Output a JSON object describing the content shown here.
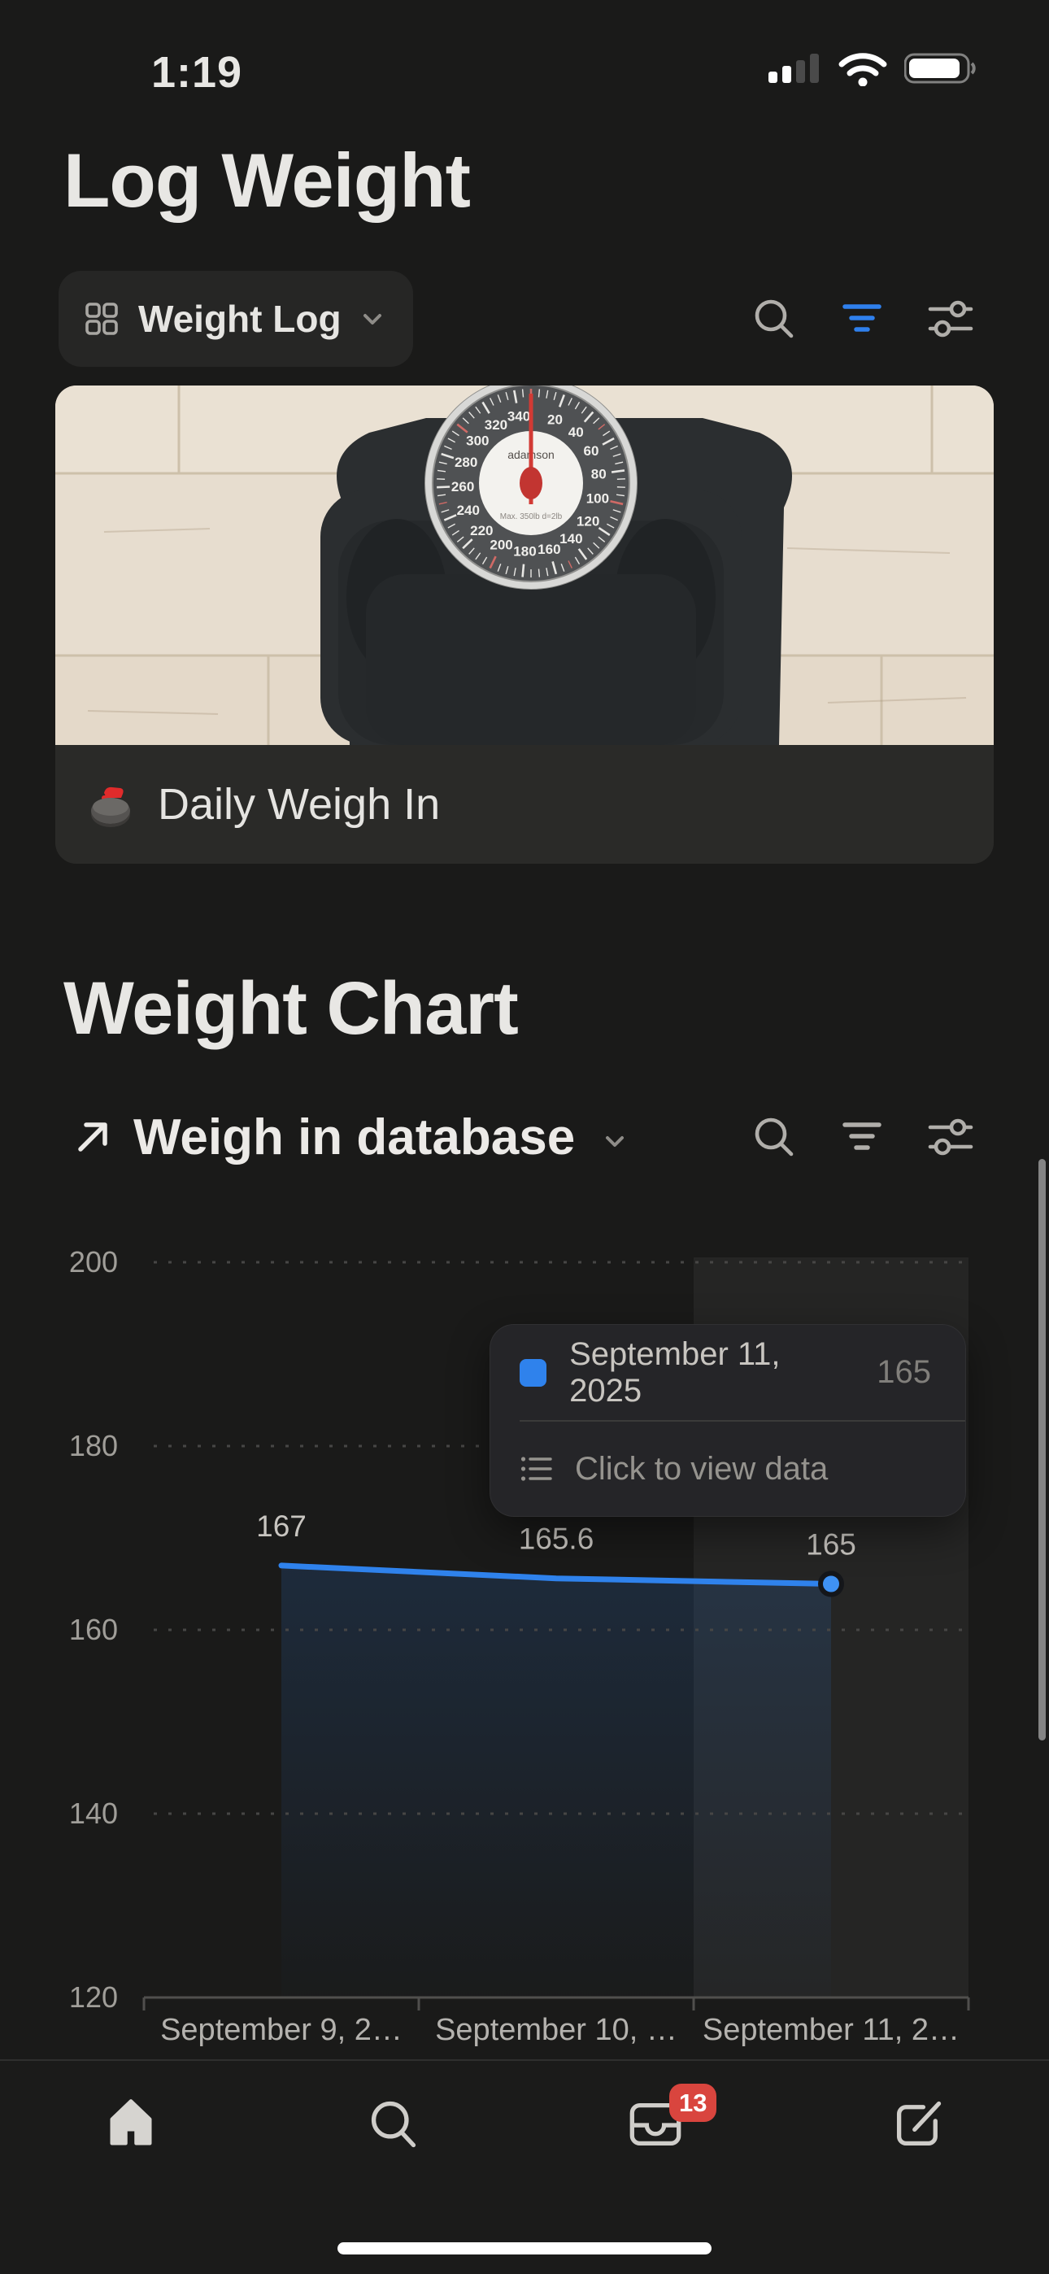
{
  "status_bar": {
    "time": "1:19",
    "signal_bars_filled": 2,
    "signal_bars_total": 4,
    "wifi": "full",
    "battery_percent_visual": 90
  },
  "header": {
    "title": "Log Weight"
  },
  "log_section": {
    "view_switcher": {
      "icon": "gallery-view-grid",
      "label": "Weight Log"
    },
    "toolbar": {
      "search": "search",
      "filter": "filter",
      "settings": "sliders",
      "filter_active_color": "#2f80ed"
    },
    "card": {
      "image_alt": "Analog bathroom scale on a light wood floor",
      "caption_icon": "curling-stone-emoji",
      "caption": "Daily Weigh In"
    }
  },
  "chart_section": {
    "heading": "Weight Chart",
    "database_link": {
      "icon": "arrow-up-right",
      "label": "Weigh in database"
    },
    "toolbar": {
      "search": "search",
      "filter": "filter",
      "settings": "sliders"
    },
    "tooltip": {
      "swatch_color": "#2f82ec",
      "date": "September 11, 2025",
      "value": "165",
      "action_icon": "bulleted-list",
      "action": "Click to view data"
    }
  },
  "chart_data": {
    "type": "line",
    "x_labels": [
      "September 9, 2…",
      "September 10, …",
      "September 11, 2…"
    ],
    "values": [
      167,
      165.6,
      165
    ],
    "point_labels": [
      "167",
      "165.6",
      "165"
    ],
    "yticks": [
      200,
      180,
      160,
      140,
      120
    ],
    "ylim": [
      120,
      200
    ],
    "grid": "horizontal-dotted",
    "legend_position": "none",
    "line_color": "#2f82ec",
    "area_fill": true,
    "highlighted_index": 2,
    "selected_point": {
      "label": "September 11, 2025",
      "value": 165
    }
  },
  "scale_photo": {
    "brand": "adamson",
    "dial_note": "Max. 350lb d=2lb",
    "dial_numbers": [
      "20",
      "40",
      "60",
      "80",
      "100",
      "120",
      "140",
      "160",
      "180",
      "200",
      "220",
      "240",
      "260",
      "280",
      "300",
      "320",
      "340"
    ]
  },
  "nav_bar": {
    "items": [
      {
        "icon": "home",
        "active": true
      },
      {
        "icon": "search",
        "active": false
      },
      {
        "icon": "inbox",
        "active": false,
        "badge": "13"
      },
      {
        "icon": "compose",
        "active": false
      }
    ]
  }
}
